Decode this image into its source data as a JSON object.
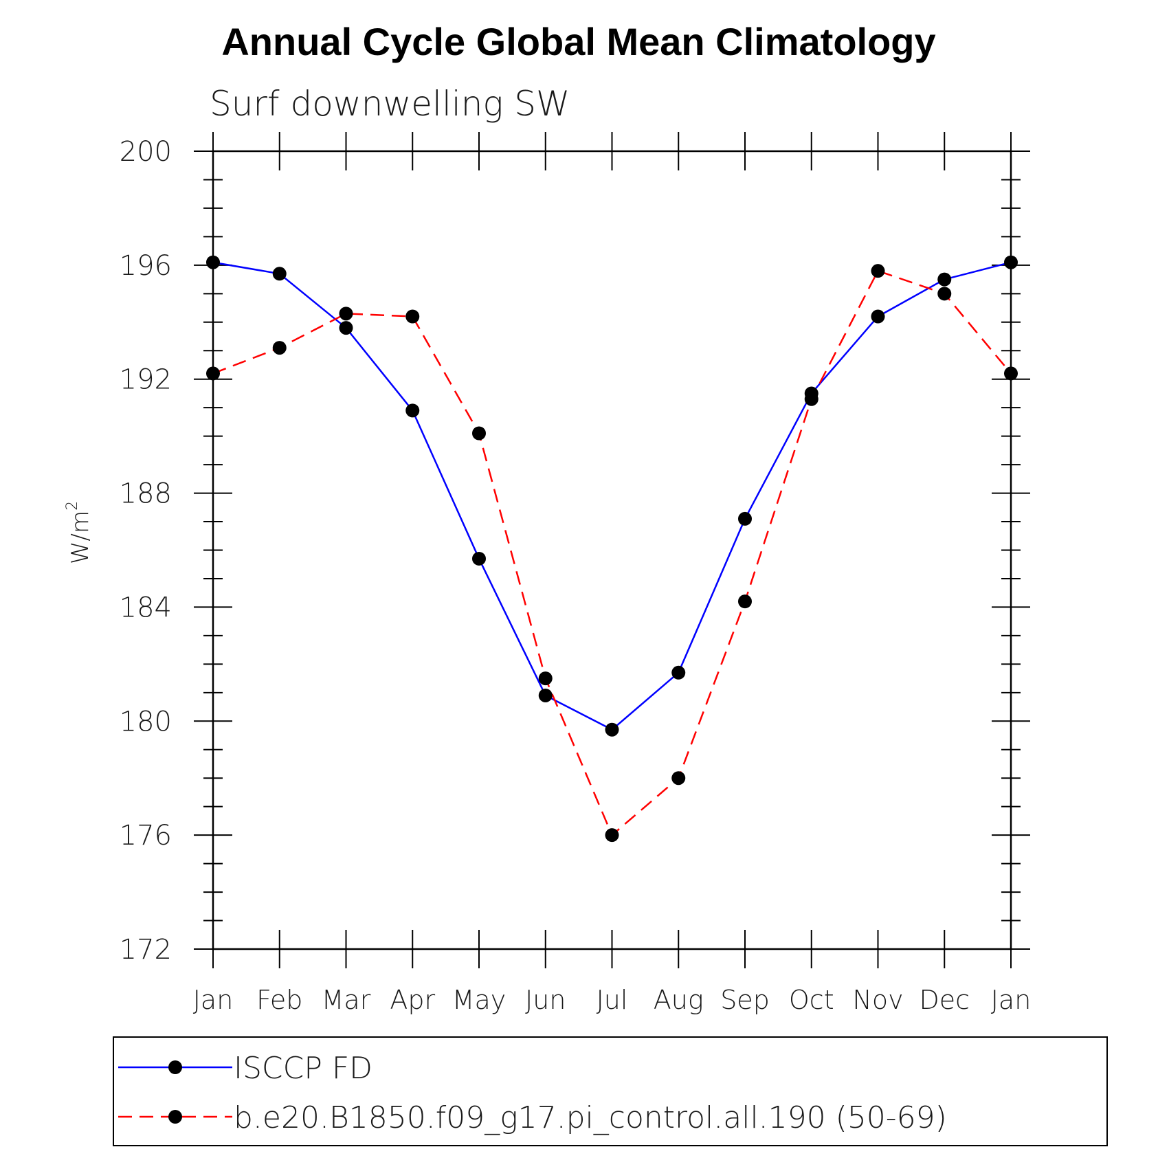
{
  "chart_data": {
    "type": "line",
    "title": "Annual Cycle Global Mean Climatology",
    "subtitle": "Surf downwelling SW",
    "ylabel": "W/m",
    "ylabel_sup": "2",
    "xlabel": "",
    "ylim": [
      172,
      200
    ],
    "yticks": [
      "172",
      "176",
      "180",
      "184",
      "188",
      "192",
      "196",
      "200"
    ],
    "categories": [
      "Jan",
      "Feb",
      "Mar",
      "Apr",
      "May",
      "Jun",
      "Jul",
      "Aug",
      "Sep",
      "Oct",
      "Nov",
      "Dec",
      "Jan"
    ],
    "series": [
      {
        "name": "ISCCP FD",
        "color": "#0000ff",
        "dash": "solid",
        "values": [
          196.1,
          195.7,
          193.8,
          190.9,
          185.7,
          180.9,
          179.7,
          181.7,
          187.1,
          191.5,
          194.2,
          195.5,
          196.1
        ]
      },
      {
        "name": "b.e20.B1850.f09_g17.pi_control.all.190 (50-69)",
        "color": "#ff0000",
        "dash": "dashed",
        "values": [
          192.2,
          193.1,
          194.3,
          194.2,
          190.1,
          181.5,
          176.0,
          178.0,
          184.2,
          191.3,
          195.8,
          195.0,
          192.2
        ]
      }
    ],
    "marker_color": "#000000"
  }
}
